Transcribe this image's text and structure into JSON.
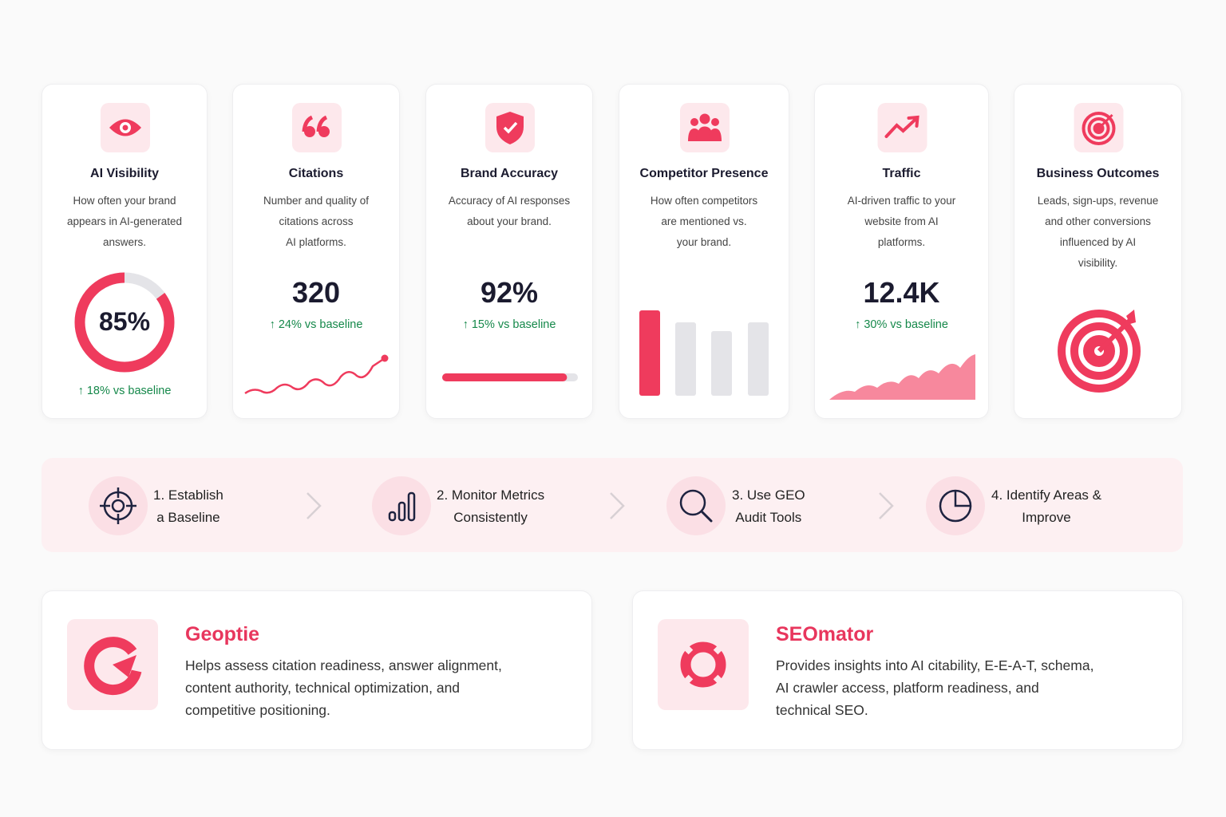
{
  "cards": [
    {
      "title": "AI Visibility",
      "description": [
        "How often your brand",
        "appears in AI-generated",
        "answers."
      ],
      "value": "85%",
      "gauge": 85,
      "range": [
        0,
        100
      ],
      "delta": "18% vs baseline"
    },
    {
      "title": "Citations",
      "description": [
        "Number and quality of",
        "citations across",
        "AI platforms."
      ],
      "value": "320",
      "delta": "24% vs baseline"
    },
    {
      "title": "Brand Accuracy",
      "description": [
        "Accuracy of AI responses",
        "about your brand."
      ],
      "value": "92%",
      "gauge": 92,
      "range": [
        0,
        100
      ],
      "delta": "15% vs baseline"
    },
    {
      "title": "Competitor Presence",
      "description": [
        "How often competitors",
        "are mentioned vs.",
        "your brand."
      ]
    },
    {
      "title": "Traffic",
      "description": [
        "AI-driven traffic to your",
        "website from AI",
        "platforms."
      ],
      "value": "12.4K",
      "delta": "30% vs baseline"
    },
    {
      "title": "Business Outcomes",
      "description": [
        "Leads, sign-ups, revenue",
        "and other conversions",
        "influenced by AI",
        "visibility."
      ]
    }
  ],
  "steps": [
    {
      "lines": [
        "1. Establish",
        "a Baseline"
      ]
    },
    {
      "lines": [
        "2. Monitor Metrics",
        "Consistently"
      ]
    },
    {
      "lines": [
        "3. Use GEO",
        "Audit Tools"
      ]
    },
    {
      "lines": [
        "4. Identify Areas &",
        "Improve"
      ]
    }
  ],
  "tools": [
    {
      "name": "Geoptie",
      "description": [
        "Helps assess citation readiness, answer alignment,",
        "content authority, technical optimization, and",
        "competitive positioning."
      ]
    },
    {
      "name": "SEOmator",
      "description": [
        "Provides insights into AI citability, E-E-A-T, schema,",
        "AI crawler access, platform readiness, and",
        "technical SEO."
      ]
    }
  ]
}
